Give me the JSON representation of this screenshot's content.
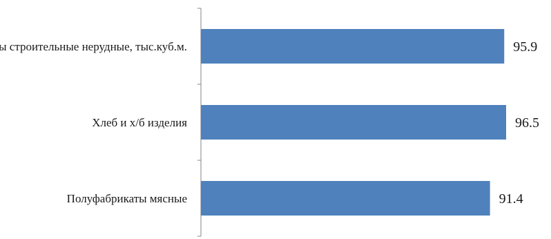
{
  "chart_data": {
    "type": "bar",
    "orientation": "horizontal",
    "categories": [
      "Материалы строительные нерудные, тыс.куб.м.",
      "Хлеб и х/б изделия",
      "Полуфабрикаты мясные"
    ],
    "values": [
      95.9,
      96.5,
      91.4
    ],
    "value_labels": [
      "95.9",
      "96.5",
      "91.4"
    ],
    "bar_color": "#4F81BD",
    "axis_color": "#868686",
    "grid": false,
    "legend": "none"
  }
}
